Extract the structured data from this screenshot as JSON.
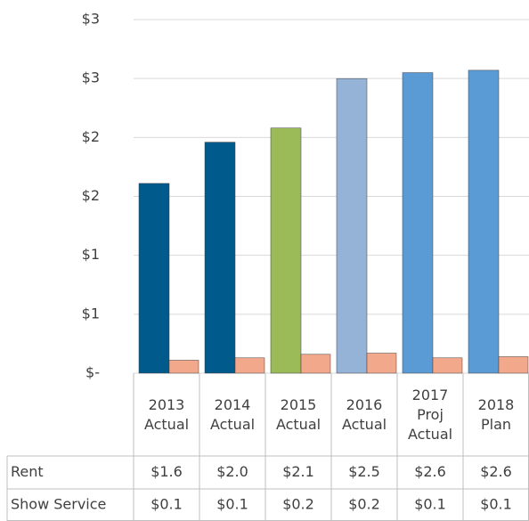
{
  "chart_data": {
    "type": "bar",
    "categories": [
      "2013\nActual",
      "2014\nActual",
      "2015\nActual",
      "2016\nActual",
      "2017\nProj\nActual",
      "2018\nPlan"
    ],
    "series": [
      {
        "name": "Rent",
        "colors": [
          "#005a8c",
          "#005a8c",
          "#9bbb59",
          "#95b3d7",
          "#5b9bd5",
          "#5b9bd5"
        ],
        "values": [
          1.61,
          1.96,
          2.08,
          2.5,
          2.55,
          2.57
        ],
        "value_labels": [
          "$1.6",
          "$2.0",
          "$2.1",
          "$2.5",
          "$2.6",
          "$2.6"
        ]
      },
      {
        "name": "Show Service",
        "color": "#f2a88a",
        "values": [
          0.11,
          0.13,
          0.16,
          0.17,
          0.13,
          0.14
        ],
        "value_labels": [
          "$0.1",
          "$0.1",
          "$0.2",
          "$0.2",
          "$0.1",
          "$0.1"
        ]
      }
    ],
    "ylim": [
      0,
      3
    ],
    "yticks": [
      {
        "value": 0,
        "label": "$-"
      },
      {
        "value": 0.5,
        "label": "$1"
      },
      {
        "value": 1,
        "label": "$1"
      },
      {
        "value": 1.5,
        "label": "$2"
      },
      {
        "value": 2,
        "label": "$2"
      },
      {
        "value": 2.5,
        "label": "$3"
      },
      {
        "value": 3,
        "label": "$3"
      }
    ],
    "grid": true
  }
}
